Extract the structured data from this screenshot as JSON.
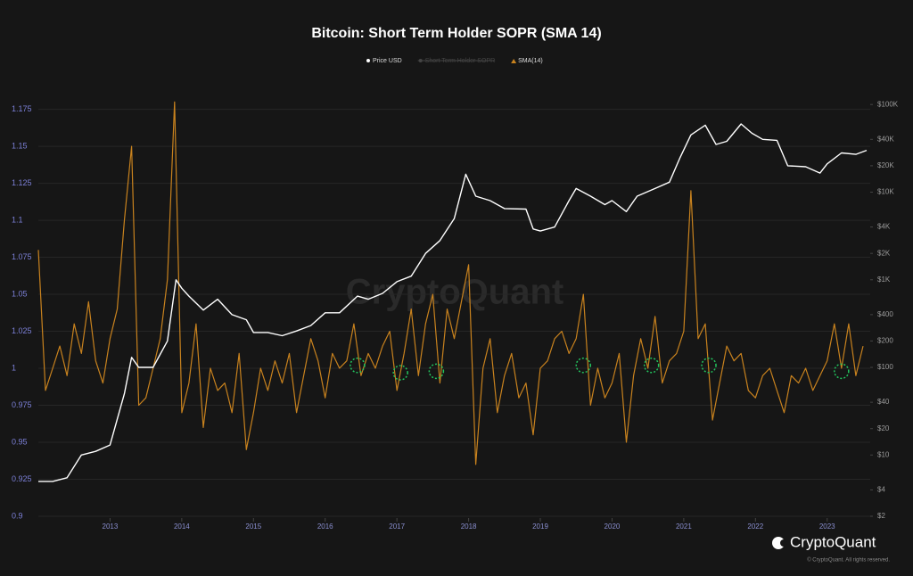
{
  "chart_data": {
    "type": "line",
    "title": "Bitcoin: Short Term Holder SOPR (SMA 14)",
    "watermark": "CryptoQuant",
    "brand": "CryptoQuant",
    "copyright": "© CryptoQuant. All rights reserved.",
    "xlim": [
      2012,
      2023.6
    ],
    "xticks": [
      2013,
      2014,
      2015,
      2016,
      2017,
      2018,
      2019,
      2020,
      2021,
      2022,
      2023
    ],
    "ylim": [
      0.9,
      1.185
    ],
    "yticks": [
      0.9,
      0.925,
      0.95,
      0.975,
      1,
      1.025,
      1.05,
      1.075,
      1.1,
      1.125,
      1.15,
      1.175
    ],
    "y2lim": [
      2,
      130000
    ],
    "y2log": true,
    "y2ticks": [
      {
        "value": 2,
        "label": "$2"
      },
      {
        "value": 4,
        "label": "$4"
      },
      {
        "value": 10,
        "label": "$10"
      },
      {
        "value": 20,
        "label": "$20"
      },
      {
        "value": 40,
        "label": "$40"
      },
      {
        "value": 100,
        "label": "$100"
      },
      {
        "value": 200,
        "label": "$200"
      },
      {
        "value": 400,
        "label": "$400"
      },
      {
        "value": 1000,
        "label": "$1K"
      },
      {
        "value": 2000,
        "label": "$2K"
      },
      {
        "value": 4000,
        "label": "$4K"
      },
      {
        "value": 10000,
        "label": "$10K"
      },
      {
        "value": 20000,
        "label": "$20K"
      },
      {
        "value": 40000,
        "label": "$40K"
      },
      {
        "value": 100000,
        "label": "$100K"
      }
    ],
    "grid": true,
    "series": [
      {
        "name": "Price USD",
        "color": "#ffffff",
        "axis": "y2",
        "x": [
          2012.0,
          2012.2,
          2012.4,
          2012.6,
          2012.8,
          2013.0,
          2013.2,
          2013.3,
          2013.4,
          2013.6,
          2013.8,
          2013.92,
          2014.0,
          2014.1,
          2014.3,
          2014.5,
          2014.7,
          2014.9,
          2015.0,
          2015.2,
          2015.4,
          2015.6,
          2015.8,
          2016.0,
          2016.2,
          2016.45,
          2016.6,
          2016.8,
          2017.0,
          2017.2,
          2017.4,
          2017.6,
          2017.8,
          2017.96,
          2018.1,
          2018.3,
          2018.5,
          2018.8,
          2018.9,
          2019.0,
          2019.2,
          2019.4,
          2019.5,
          2019.7,
          2019.9,
          2020.0,
          2020.2,
          2020.35,
          2020.6,
          2020.8,
          2020.95,
          2021.1,
          2021.3,
          2021.45,
          2021.6,
          2021.8,
          2021.95,
          2022.1,
          2022.3,
          2022.45,
          2022.7,
          2022.9,
          2023.0,
          2023.2,
          2023.4,
          2023.55
        ],
        "values": [
          5,
          5,
          5.5,
          10,
          11,
          13,
          50,
          130,
          100,
          100,
          200,
          1000,
          800,
          650,
          450,
          600,
          400,
          350,
          250,
          250,
          230,
          260,
          300,
          420,
          420,
          650,
          600,
          700,
          950,
          1100,
          2000,
          2800,
          5000,
          16000,
          9000,
          8000,
          6500,
          6400,
          3800,
          3600,
          4000,
          8000,
          11000,
          9000,
          7200,
          8000,
          6000,
          9000,
          11000,
          13000,
          25000,
          45000,
          58000,
          35000,
          38000,
          60000,
          47000,
          40000,
          39000,
          20000,
          19500,
          16500,
          21000,
          28000,
          27000,
          30000
        ]
      },
      {
        "name": "Short Term Holder SOPR",
        "color": "#666666",
        "visible": false
      },
      {
        "name": "SMA(14)",
        "color": "#c8821e",
        "x": [
          2012.0,
          2012.1,
          2012.2,
          2012.3,
          2012.4,
          2012.5,
          2012.6,
          2012.7,
          2012.8,
          2012.9,
          2013.0,
          2013.1,
          2013.2,
          2013.3,
          2013.4,
          2013.5,
          2013.6,
          2013.7,
          2013.8,
          2013.9,
          2014.0,
          2014.1,
          2014.2,
          2014.3,
          2014.4,
          2014.5,
          2014.6,
          2014.7,
          2014.8,
          2014.9,
          2015.0,
          2015.1,
          2015.2,
          2015.3,
          2015.4,
          2015.5,
          2015.6,
          2015.7,
          2015.8,
          2015.9,
          2016.0,
          2016.1,
          2016.2,
          2016.3,
          2016.4,
          2016.5,
          2016.6,
          2016.7,
          2016.8,
          2016.9,
          2017.0,
          2017.1,
          2017.2,
          2017.3,
          2017.4,
          2017.5,
          2017.6,
          2017.7,
          2017.8,
          2017.9,
          2018.0,
          2018.1,
          2018.2,
          2018.3,
          2018.4,
          2018.5,
          2018.6,
          2018.7,
          2018.8,
          2018.9,
          2019.0,
          2019.1,
          2019.2,
          2019.3,
          2019.4,
          2019.5,
          2019.6,
          2019.7,
          2019.8,
          2019.9,
          2020.0,
          2020.1,
          2020.2,
          2020.3,
          2020.4,
          2020.5,
          2020.6,
          2020.7,
          2020.8,
          2020.9,
          2021.0,
          2021.1,
          2021.2,
          2021.3,
          2021.4,
          2021.5,
          2021.6,
          2021.7,
          2021.8,
          2021.9,
          2022.0,
          2022.1,
          2022.2,
          2022.3,
          2022.4,
          2022.5,
          2022.6,
          2022.7,
          2022.8,
          2022.9,
          2023.0,
          2023.1,
          2023.2,
          2023.3,
          2023.4,
          2023.5
        ],
        "values": [
          1.08,
          0.985,
          1.0,
          1.015,
          0.995,
          1.03,
          1.01,
          1.045,
          1.005,
          0.99,
          1.02,
          1.04,
          1.1,
          1.15,
          0.975,
          0.98,
          1.0,
          1.02,
          1.06,
          1.18,
          0.97,
          0.99,
          1.03,
          0.96,
          1.0,
          0.985,
          0.99,
          0.97,
          1.01,
          0.945,
          0.97,
          1.0,
          0.985,
          1.005,
          0.99,
          1.01,
          0.97,
          0.995,
          1.02,
          1.005,
          0.98,
          1.01,
          1.0,
          1.005,
          1.03,
          0.995,
          1.01,
          1.0,
          1.015,
          1.025,
          0.985,
          1.01,
          1.04,
          0.995,
          1.03,
          1.05,
          0.99,
          1.04,
          1.02,
          1.045,
          1.07,
          0.935,
          1.0,
          1.02,
          0.97,
          0.995,
          1.01,
          0.98,
          0.99,
          0.955,
          1.0,
          1.005,
          1.02,
          1.025,
          1.01,
          1.02,
          1.05,
          0.975,
          1.0,
          0.98,
          0.99,
          1.01,
          0.95,
          0.995,
          1.02,
          1.0,
          1.035,
          0.99,
          1.005,
          1.01,
          1.025,
          1.12,
          1.02,
          1.03,
          0.965,
          0.99,
          1.015,
          1.005,
          1.01,
          0.985,
          0.98,
          0.995,
          1.0,
          0.985,
          0.97,
          0.995,
          0.99,
          1.0,
          0.985,
          0.995,
          1.005,
          1.03,
          1.0,
          1.03,
          0.995,
          1.015
        ]
      }
    ],
    "highlights": {
      "x": [
        2016.45,
        2017.05,
        2017.55,
        2019.6,
        2020.55,
        2021.35,
        2023.2
      ],
      "y": [
        1.002,
        0.997,
        0.998,
        1.002,
        1.002,
        1.002,
        0.998
      ]
    }
  }
}
